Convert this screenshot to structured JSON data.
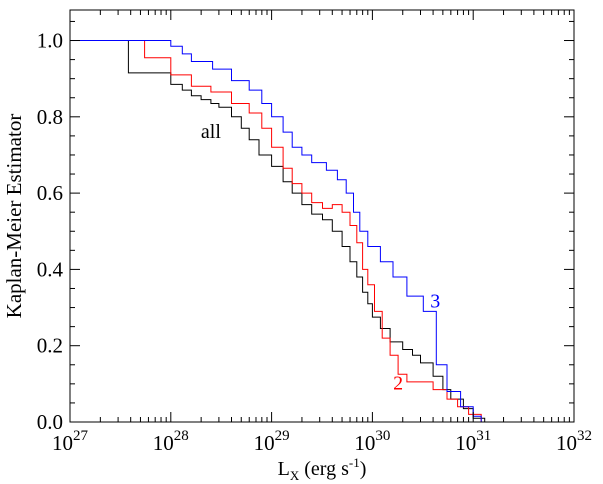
{
  "chart_data": {
    "type": "line",
    "step": true,
    "xlabel": "L",
    "xlabel_sub": "X",
    "xlabel_rest": " (erg s",
    "xlabel_sup": "-1",
    "xlabel_close": ")",
    "ylabel": "Kaplan-Meier Estimator",
    "xscale": "log",
    "xlim": [
      1e+27,
      1e+32
    ],
    "ylim": [
      0.0,
      1.08
    ],
    "x_tick_labels": [
      {
        "base": "10",
        "exp": "27",
        "value": 1e+27
      },
      {
        "base": "10",
        "exp": "28",
        "value": 1e+28
      },
      {
        "base": "10",
        "exp": "29",
        "value": 1e+29
      },
      {
        "base": "10",
        "exp": "30",
        "value": 1e+30
      },
      {
        "base": "10",
        "exp": "31",
        "value": 1e+31
      },
      {
        "base": "10",
        "exp": "32",
        "value": 1e+32
      }
    ],
    "y_tick_labels": [
      "0.0",
      "0.2",
      "0.4",
      "0.6",
      "0.8",
      "1.0"
    ],
    "y_tick_values": [
      0.0,
      0.2,
      0.4,
      0.6,
      0.8,
      1.0
    ],
    "series": [
      {
        "name": "all",
        "color": "#000000",
        "label_at": [
          2.5e+28,
          0.745
        ],
        "x": [
          1e+27,
          3.8e+27,
          3.8e+27,
          1e+28,
          1e+28,
          1.3e+28,
          1.3e+28,
          1.6e+28,
          1.6e+28,
          2e+28,
          2e+28,
          2.5e+28,
          2.5e+28,
          3e+28,
          3e+28,
          4e+28,
          4e+28,
          5e+28,
          5e+28,
          6e+28,
          6e+28,
          7.5e+28,
          7.5e+28,
          1e+29,
          1e+29,
          1.3e+29,
          1.3e+29,
          1.6e+29,
          1.6e+29,
          2e+29,
          2e+29,
          2.5e+29,
          2.5e+29,
          3.2e+29,
          3.2e+29,
          4e+29,
          4e+29,
          5e+29,
          5e+29,
          6e+29,
          6e+29,
          7e+29,
          7e+29,
          8e+29,
          8e+29,
          9e+29,
          9e+29,
          1e+30,
          1e+30,
          1.2e+30,
          1.2e+30,
          1.5e+30,
          1.5e+30,
          2e+30,
          2e+30,
          2.5e+30,
          2.5e+30,
          3e+30,
          3e+30,
          4e+30,
          4e+30,
          5e+30,
          5e+30,
          6e+30,
          6e+30,
          8e+30,
          8e+30,
          1e+31,
          1e+31,
          1.3e+31,
          1.3e+31,
          1e+32
        ],
        "y": [
          1.0,
          1.0,
          0.915,
          0.915,
          0.885,
          0.885,
          0.87,
          0.87,
          0.855,
          0.855,
          0.845,
          0.845,
          0.835,
          0.835,
          0.825,
          0.825,
          0.8,
          0.8,
          0.77,
          0.77,
          0.74,
          0.74,
          0.7,
          0.7,
          0.67,
          0.67,
          0.63,
          0.63,
          0.6,
          0.6,
          0.57,
          0.57,
          0.545,
          0.545,
          0.53,
          0.53,
          0.5,
          0.5,
          0.46,
          0.46,
          0.42,
          0.42,
          0.38,
          0.38,
          0.34,
          0.34,
          0.31,
          0.31,
          0.275,
          0.275,
          0.245,
          0.245,
          0.21,
          0.21,
          0.19,
          0.19,
          0.175,
          0.175,
          0.155,
          0.155,
          0.12,
          0.12,
          0.085,
          0.085,
          0.06,
          0.06,
          0.035,
          0.035,
          0.01,
          0.01,
          0.0,
          0.0
        ]
      },
      {
        "name": "2",
        "color": "#ff0000",
        "label_at": [
          1.8e+30,
          0.085
        ],
        "x": [
          1e+27,
          5.5e+27,
          5.5e+27,
          1e+28,
          1e+28,
          1.6e+28,
          1.6e+28,
          2.5e+28,
          2.5e+28,
          4e+28,
          4e+28,
          6e+28,
          6e+28,
          8e+28,
          8e+28,
          1e+29,
          1e+29,
          1.3e+29,
          1.3e+29,
          1.6e+29,
          1.6e+29,
          2e+29,
          2e+29,
          2.5e+29,
          2.5e+29,
          3.2e+29,
          3.2e+29,
          4e+29,
          4e+29,
          5e+29,
          5e+29,
          6e+29,
          6e+29,
          7e+29,
          7e+29,
          8e+29,
          8e+29,
          9e+29,
          9e+29,
          1.05e+30,
          1.05e+30,
          1.25e+30,
          1.25e+30,
          1.5e+30,
          1.5e+30,
          1.8e+30,
          1.8e+30,
          2.2e+30,
          2.2e+30,
          4e+30,
          4e+30,
          5.5e+30,
          5.5e+30,
          7e+30,
          7e+30,
          9e+30,
          9e+30,
          1.2e+31,
          1.2e+31,
          1e+32
        ],
        "y": [
          1.0,
          1.0,
          0.955,
          0.955,
          0.91,
          0.91,
          0.88,
          0.88,
          0.865,
          0.865,
          0.835,
          0.835,
          0.81,
          0.81,
          0.77,
          0.77,
          0.72,
          0.72,
          0.665,
          0.665,
          0.625,
          0.625,
          0.6,
          0.6,
          0.575,
          0.575,
          0.56,
          0.56,
          0.57,
          0.57,
          0.55,
          0.55,
          0.515,
          0.515,
          0.47,
          0.47,
          0.4,
          0.4,
          0.36,
          0.36,
          0.29,
          0.29,
          0.22,
          0.22,
          0.175,
          0.175,
          0.125,
          0.125,
          0.105,
          0.105,
          0.085,
          0.085,
          0.06,
          0.06,
          0.04,
          0.04,
          0.02,
          0.02,
          0.0,
          0.0
        ]
      },
      {
        "name": "3",
        "color": "#0000ff",
        "label_at": [
          4.2e+30,
          0.3
        ],
        "x": [
          1e+27,
          1e+28,
          1e+28,
          1.3e+28,
          1.3e+28,
          1.6e+28,
          1.6e+28,
          2.6e+28,
          2.6e+28,
          4e+28,
          4e+28,
          6e+28,
          6e+28,
          8e+28,
          8e+28,
          1e+29,
          1e+29,
          1.3e+29,
          1.3e+29,
          1.6e+29,
          1.6e+29,
          2e+29,
          2e+29,
          2.5e+29,
          2.5e+29,
          3.5e+29,
          3.5e+29,
          4.5e+29,
          4.5e+29,
          5.5e+29,
          5.5e+29,
          6.5e+29,
          6.5e+29,
          7.5e+29,
          7.5e+29,
          9e+29,
          9e+29,
          1.2e+30,
          1.2e+30,
          1.6e+30,
          1.6e+30,
          2.2e+30,
          2.2e+30,
          3.2e+30,
          3.2e+30,
          4.3e+30,
          4.3e+30,
          5.5e+30,
          5.5e+30,
          7.5e+30,
          7.5e+30,
          1e+31,
          1e+31,
          1.2e+31,
          1.2e+31,
          1e+32
        ],
        "y": [
          1.0,
          1.0,
          0.985,
          0.985,
          0.965,
          0.965,
          0.945,
          0.945,
          0.925,
          0.925,
          0.895,
          0.895,
          0.87,
          0.87,
          0.835,
          0.835,
          0.8,
          0.8,
          0.76,
          0.76,
          0.72,
          0.72,
          0.7,
          0.7,
          0.68,
          0.68,
          0.66,
          0.66,
          0.635,
          0.635,
          0.6,
          0.6,
          0.55,
          0.55,
          0.5,
          0.5,
          0.46,
          0.46,
          0.42,
          0.42,
          0.38,
          0.38,
          0.33,
          0.33,
          0.29,
          0.29,
          0.15,
          0.15,
          0.08,
          0.08,
          0.04,
          0.04,
          0.015,
          0.015,
          0.0,
          0.0
        ]
      }
    ]
  }
}
